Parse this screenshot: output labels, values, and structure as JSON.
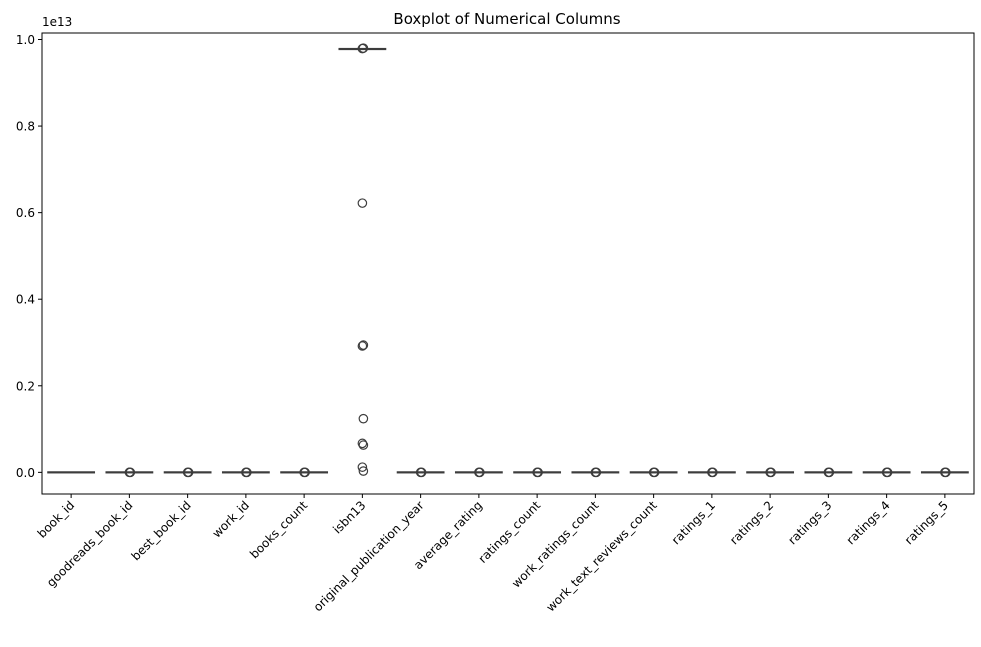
{
  "chart_data": {
    "type": "box",
    "title": "Boxplot of Numerical Columns",
    "xlabel": "",
    "ylabel": "",
    "offset_label": "1e13",
    "ylim": [
      -0.05,
      1.015
    ],
    "y_ticks": [
      0.0,
      0.2,
      0.4,
      0.6,
      0.8,
      1.0
    ],
    "y_tick_labels": [
      "0.0",
      "0.2",
      "0.4",
      "0.6",
      "0.8",
      "1.0"
    ],
    "grid": false,
    "colors": {
      "box_fill": "#ffffff",
      "box_edge": "#3d3d3d",
      "text": "#000000",
      "frame": "#000000"
    },
    "categories": [
      "book_id",
      "goodreads_book_id",
      "best_book_id",
      "work_id",
      "books_count",
      "isbn13",
      "original_publication_year",
      "average_rating",
      "ratings_count",
      "work_ratings_count",
      "work_text_reviews_count",
      "ratings_1",
      "ratings_2",
      "ratings_3",
      "ratings_4",
      "ratings_5"
    ],
    "series": [
      {
        "category": "book_id",
        "q1": 0,
        "median": 0,
        "q3": 0,
        "whisker_low": 0,
        "whisker_high": 0,
        "outliers": []
      },
      {
        "category": "goodreads_book_id",
        "q1": 0,
        "median": 0,
        "q3": 0,
        "whisker_low": 0,
        "whisker_high": 0,
        "outliers": [
          0.0,
          0.0
        ]
      },
      {
        "category": "best_book_id",
        "q1": 0,
        "median": 0,
        "q3": 0,
        "whisker_low": 0,
        "whisker_high": 0,
        "outliers": [
          0.0,
          0.0
        ]
      },
      {
        "category": "work_id",
        "q1": 0,
        "median": 0,
        "q3": 0,
        "whisker_low": 0,
        "whisker_high": 0,
        "outliers": [
          0.0,
          0.0
        ]
      },
      {
        "category": "books_count",
        "q1": 0,
        "median": 0,
        "q3": 0,
        "whisker_low": 0,
        "whisker_high": 0,
        "outliers": [
          0.0,
          0.0
        ]
      },
      {
        "category": "isbn13",
        "q1": 0.978,
        "median": 0.978,
        "q3": 0.978,
        "whisker_low": 0.978,
        "whisker_high": 0.978,
        "outliers": [
          0.979,
          0.98,
          0.622,
          0.294,
          0.292,
          0.124,
          0.067,
          0.063,
          0.012,
          0.003
        ]
      },
      {
        "category": "original_publication_year",
        "q1": 0,
        "median": 0,
        "q3": 0,
        "whisker_low": 0,
        "whisker_high": 0,
        "outliers": [
          0.0,
          0.0
        ]
      },
      {
        "category": "average_rating",
        "q1": 0,
        "median": 0,
        "q3": 0,
        "whisker_low": 0,
        "whisker_high": 0,
        "outliers": [
          0.0,
          0.0
        ]
      },
      {
        "category": "ratings_count",
        "q1": 0,
        "median": 0,
        "q3": 0,
        "whisker_low": 0,
        "whisker_high": 0,
        "outliers": [
          0.0,
          0.0
        ]
      },
      {
        "category": "work_ratings_count",
        "q1": 0,
        "median": 0,
        "q3": 0,
        "whisker_low": 0,
        "whisker_high": 0,
        "outliers": [
          0.0,
          0.0
        ]
      },
      {
        "category": "work_text_reviews_count",
        "q1": 0,
        "median": 0,
        "q3": 0,
        "whisker_low": 0,
        "whisker_high": 0,
        "outliers": [
          0.0,
          0.0
        ]
      },
      {
        "category": "ratings_1",
        "q1": 0,
        "median": 0,
        "q3": 0,
        "whisker_low": 0,
        "whisker_high": 0,
        "outliers": [
          0.0,
          0.0
        ]
      },
      {
        "category": "ratings_2",
        "q1": 0,
        "median": 0,
        "q3": 0,
        "whisker_low": 0,
        "whisker_high": 0,
        "outliers": [
          0.0,
          0.0
        ]
      },
      {
        "category": "ratings_3",
        "q1": 0,
        "median": 0,
        "q3": 0,
        "whisker_low": 0,
        "whisker_high": 0,
        "outliers": [
          0.0,
          0.0
        ]
      },
      {
        "category": "ratings_4",
        "q1": 0,
        "median": 0,
        "q3": 0,
        "whisker_low": 0,
        "whisker_high": 0,
        "outliers": [
          0.0,
          0.0
        ]
      },
      {
        "category": "ratings_5",
        "q1": 0,
        "median": 0,
        "q3": 0,
        "whisker_low": 0,
        "whisker_high": 0,
        "outliers": [
          0.0,
          0.0
        ]
      }
    ]
  }
}
